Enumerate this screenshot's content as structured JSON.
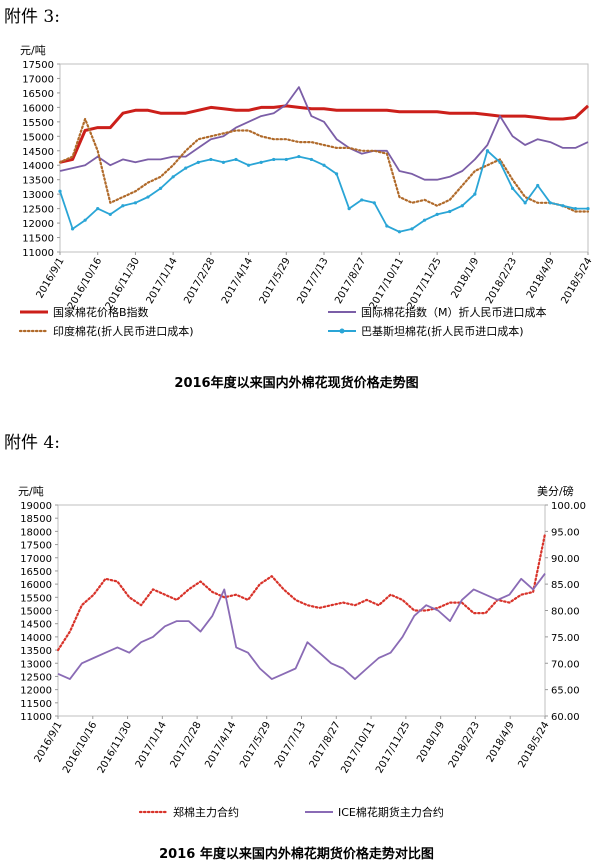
{
  "headings": {
    "first": "附件 3:",
    "second": "附件 4:"
  },
  "captions": {
    "first": "2016年度以来国内外棉花现货价格走势图",
    "second": "2016 年度以来国内外棉花期货价格走势对比图"
  },
  "chart_data": [
    {
      "type": "line",
      "ylabel": "元/吨",
      "ylim": [
        11000,
        17500
      ],
      "yticks": [
        11000,
        11500,
        12000,
        12500,
        13000,
        13500,
        14000,
        14500,
        15000,
        15500,
        16000,
        16500,
        17000,
        17500
      ],
      "xticks": [
        "2016/9/1",
        "2016/10/16",
        "2016/11/30",
        "2017/1/14",
        "2017/2/28",
        "2017/4/14",
        "2017/5/29",
        "2017/7/13",
        "2017/8/27",
        "2017/10/11",
        "2017/11/25",
        "2018/1/9",
        "2018/2/23",
        "2018/4/9",
        "2018/5/24"
      ],
      "legend": [
        {
          "name": "国家棉花价格B指数",
          "color": "#cc1f1a",
          "style": "solid-thick"
        },
        {
          "name": "国际棉花指数（M）折人民币进口成本",
          "color": "#7b5ea7",
          "style": "solid"
        },
        {
          "name": "印度棉花(折人民币进口成本)",
          "color": "#b06a2a",
          "style": "dotted"
        },
        {
          "name": "巴基斯坦棉花(折人民币进口成本)",
          "color": "#2aa5d6",
          "style": "marker"
        }
      ],
      "series": [
        {
          "name": "国家棉花价格B指数",
          "color": "#cc1f1a",
          "values": [
            14100,
            14200,
            15200,
            15300,
            15300,
            15800,
            15900,
            15900,
            15800,
            15800,
            15800,
            15900,
            16000,
            15950,
            15900,
            15900,
            16000,
            16000,
            16050,
            16000,
            15950,
            15950,
            15900,
            15900,
            15900,
            15900,
            15900,
            15850,
            15850,
            15850,
            15850,
            15800,
            15800,
            15800,
            15750,
            15700,
            15700,
            15700,
            15650,
            15600,
            15600,
            15650,
            16050
          ]
        },
        {
          "name": "国际棉花指数（M）折人民币进口成本",
          "color": "#7b5ea7",
          "values": [
            13800,
            13900,
            14000,
            14300,
            14000,
            14200,
            14100,
            14200,
            14200,
            14300,
            14300,
            14600,
            14900,
            15000,
            15300,
            15500,
            15700,
            15800,
            16100,
            16700,
            15700,
            15500,
            14900,
            14600,
            14400,
            14500,
            14500,
            13800,
            13700,
            13500,
            13500,
            13600,
            13800,
            14200,
            14700,
            15700,
            15000,
            14700,
            14900,
            14800,
            14600,
            14600,
            14800
          ]
        },
        {
          "name": "印度棉花(折人民币进口成本)",
          "color": "#b06a2a",
          "values": [
            14100,
            14300,
            15600,
            14500,
            12700,
            12900,
            13100,
            13400,
            13600,
            14000,
            14500,
            14900,
            15000,
            15100,
            15200,
            15200,
            15000,
            14900,
            14900,
            14800,
            14800,
            14700,
            14600,
            14600,
            14500,
            14500,
            14400,
            12900,
            12700,
            12800,
            12600,
            12800,
            13300,
            13800,
            14000,
            14200,
            13500,
            12900,
            12700,
            12700,
            12600,
            12400,
            12400
          ]
        },
        {
          "name": "巴基斯坦棉花(折人民币进口成本)",
          "color": "#2aa5d6",
          "values": [
            13100,
            11800,
            12100,
            12500,
            12300,
            12600,
            12700,
            12900,
            13200,
            13600,
            13900,
            14100,
            14200,
            14100,
            14200,
            14000,
            14100,
            14200,
            14200,
            14300,
            14200,
            14000,
            13700,
            12500,
            12800,
            12700,
            11900,
            11700,
            11800,
            12100,
            12300,
            12400,
            12600,
            13000,
            14500,
            14100,
            13200,
            12700,
            13300,
            12700,
            12600,
            12500,
            12500
          ]
        }
      ]
    },
    {
      "type": "line",
      "ylabel": "元/吨",
      "y2label": "美分/磅",
      "ylim": [
        11000,
        19000
      ],
      "y2lim": [
        60,
        100
      ],
      "yticks": [
        11000,
        11500,
        12000,
        12500,
        13000,
        13500,
        14000,
        14500,
        15000,
        15500,
        16000,
        16500,
        17000,
        17500,
        18000,
        18500,
        19000
      ],
      "y2ticks": [
        "60.00",
        "65.00",
        "70.00",
        "75.00",
        "80.00",
        "85.00",
        "90.00",
        "95.00",
        "100.00"
      ],
      "xticks": [
        "2016/9/1",
        "2016/10/16",
        "2016/11/30",
        "2017/1/14",
        "2017/2/28",
        "2017/4/14",
        "2017/5/29",
        "2017/7/13",
        "2017/8/27",
        "2017/10/11",
        "2017/11/25",
        "2018/1/9",
        "2018/2/23",
        "2018/4/9",
        "2018/5/24"
      ],
      "legend": [
        {
          "name": "郑棉主力合约",
          "color": "#d8332a",
          "style": "dotted"
        },
        {
          "name": "ICE棉花期货主力合约",
          "color": "#8a6bb5",
          "style": "solid"
        }
      ],
      "series": [
        {
          "name": "郑棉主力合约",
          "color": "#d8332a",
          "axis": "left",
          "values": [
            13500,
            14200,
            15200,
            15600,
            16200,
            16100,
            15500,
            15200,
            15800,
            15600,
            15400,
            15800,
            16100,
            15700,
            15500,
            15600,
            15400,
            16000,
            16300,
            15800,
            15400,
            15200,
            15100,
            15200,
            15300,
            15200,
            15400,
            15200,
            15600,
            15400,
            15000,
            15000,
            15100,
            15300,
            15300,
            14900,
            14900,
            15400,
            15300,
            15600,
            15700,
            17900
          ]
        },
        {
          "name": "ICE棉花期货主力合约",
          "color": "#8a6bb5",
          "axis": "right",
          "values": [
            68,
            67,
            70,
            71,
            72,
            73,
            72,
            74,
            75,
            77,
            78,
            78,
            76,
            79,
            84,
            73,
            72,
            69,
            67,
            68,
            69,
            74,
            72,
            70,
            69,
            67,
            69,
            71,
            72,
            75,
            79,
            81,
            80,
            78,
            82,
            84,
            83,
            82,
            83,
            86,
            84,
            87
          ]
        }
      ]
    }
  ]
}
